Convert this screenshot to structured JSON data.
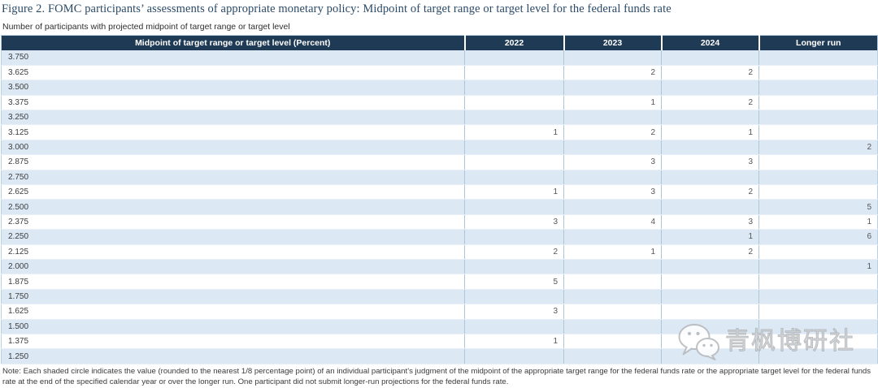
{
  "watermark": {
    "icon": "wechat-icon",
    "text": "青枫博研社"
  },
  "colors": {
    "header_bg": "#1e3a55",
    "shaded_row": "#dce9f5",
    "column_border": "#abc5da",
    "outer_border": "#b9cfe2",
    "title_text": "#2b4a68",
    "header_text": "#ffffff"
  },
  "chart_data": {
    "type": "table",
    "title": "Figure 2. FOMC participants’ assessments of appropriate monetary policy: Midpoint of target range or target level for the federal funds rate",
    "subtitle": "Number of participants with projected midpoint of target range or target level",
    "columns": [
      "Midpoint of target range or target level (Percent)",
      "2022",
      "2023",
      "2024",
      "Longer run"
    ],
    "rows": [
      {
        "rate": "3.750",
        "cells": [
          "",
          "",
          "",
          ""
        ]
      },
      {
        "rate": "3.625",
        "cells": [
          "",
          "2",
          "2",
          ""
        ]
      },
      {
        "rate": "3.500",
        "cells": [
          "",
          "",
          "",
          ""
        ]
      },
      {
        "rate": "3.375",
        "cells": [
          "",
          "1",
          "2",
          ""
        ]
      },
      {
        "rate": "3.250",
        "cells": [
          "",
          "",
          "",
          ""
        ]
      },
      {
        "rate": "3.125",
        "cells": [
          "1",
          "2",
          "1",
          ""
        ]
      },
      {
        "rate": "3.000",
        "cells": [
          "",
          "",
          "",
          "2"
        ]
      },
      {
        "rate": "2.875",
        "cells": [
          "",
          "3",
          "3",
          ""
        ]
      },
      {
        "rate": "2.750",
        "cells": [
          "",
          "",
          "",
          ""
        ]
      },
      {
        "rate": "2.625",
        "cells": [
          "1",
          "3",
          "2",
          ""
        ]
      },
      {
        "rate": "2.500",
        "cells": [
          "",
          "",
          "",
          "5"
        ]
      },
      {
        "rate": "2.375",
        "cells": [
          "3",
          "4",
          "3",
          "1"
        ]
      },
      {
        "rate": "2.250",
        "cells": [
          "",
          "",
          "1",
          "6"
        ]
      },
      {
        "rate": "2.125",
        "cells": [
          "2",
          "1",
          "2",
          ""
        ]
      },
      {
        "rate": "2.000",
        "cells": [
          "",
          "",
          "",
          "1"
        ]
      },
      {
        "rate": "1.875",
        "cells": [
          "5",
          "",
          "",
          ""
        ]
      },
      {
        "rate": "1.750",
        "cells": [
          "",
          "",
          "",
          ""
        ]
      },
      {
        "rate": "1.625",
        "cells": [
          "3",
          "",
          "",
          ""
        ]
      },
      {
        "rate": "1.500",
        "cells": [
          "",
          "",
          "",
          ""
        ]
      },
      {
        "rate": "1.375",
        "cells": [
          "1",
          "",
          "",
          ""
        ]
      },
      {
        "rate": "1.250",
        "cells": [
          "",
          "",
          "",
          ""
        ]
      }
    ],
    "note": "Note: Each shaded circle indicates the value (rounded to the nearest 1/8 percentage point) of an individual participant’s judgment of the midpoint of the appropriate target range for the federal funds rate or the appropriate target level for the federal funds rate at the end of the specified calendar year or over the longer run. One participant did not submit longer-run projections for the federal funds rate."
  }
}
